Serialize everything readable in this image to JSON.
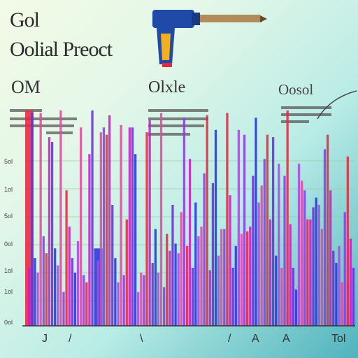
{
  "chart_data": {
    "type": "bar",
    "title": "Gol",
    "subtitle": "Oolial Preoct",
    "section_labels": [
      "OM",
      "Olxle",
      "Oosol"
    ],
    "ylim": [
      0,
      100
    ],
    "yticks": [
      "5ol",
      "1ol",
      "5ol",
      "0ol",
      "1ol",
      "1ol",
      "0ol"
    ],
    "xticks": [
      "J",
      "/",
      "\\",
      "/",
      "A",
      "A",
      "Tol"
    ],
    "grid": true,
    "legend": false,
    "colors": [
      "#e8273c",
      "#c81ec8",
      "#6a2fd8",
      "#2436e0",
      "#a84ae0",
      "#e04a9e",
      "#8a3ee6"
    ],
    "values": [
      89,
      24,
      88,
      28,
      22,
      88,
      37,
      30,
      78,
      76,
      32,
      25,
      89,
      14,
      56,
      41,
      28,
      22,
      35,
      82,
      21,
      18,
      71,
      89,
      32,
      27,
      80,
      82,
      79,
      87,
      50,
      28,
      18,
      83,
      21,
      44,
      82,
      82,
      71,
      14,
      22,
      21,
      80,
      85,
      26,
      40,
      22,
      88,
      16,
      38,
      31,
      50,
      34,
      30,
      47,
      86,
      33,
      69,
      24,
      51,
      37,
      41,
      63,
      87,
      23,
      59,
      81,
      29,
      40,
      40,
      88,
      54,
      24,
      33,
      81,
      38,
      79,
      39,
      41,
      62,
      86,
      51,
      58,
      69,
      79,
      44,
      78,
      29,
      67,
      24,
      62,
      89,
      42,
      24,
      15,
      67,
      60,
      56,
      44,
      44,
      49,
      53,
      50,
      40,
      73,
      79,
      56,
      31,
      26,
      33,
      18,
      47,
      70,
      36,
      24
    ]
  },
  "icons": [
    "drill-icon"
  ]
}
